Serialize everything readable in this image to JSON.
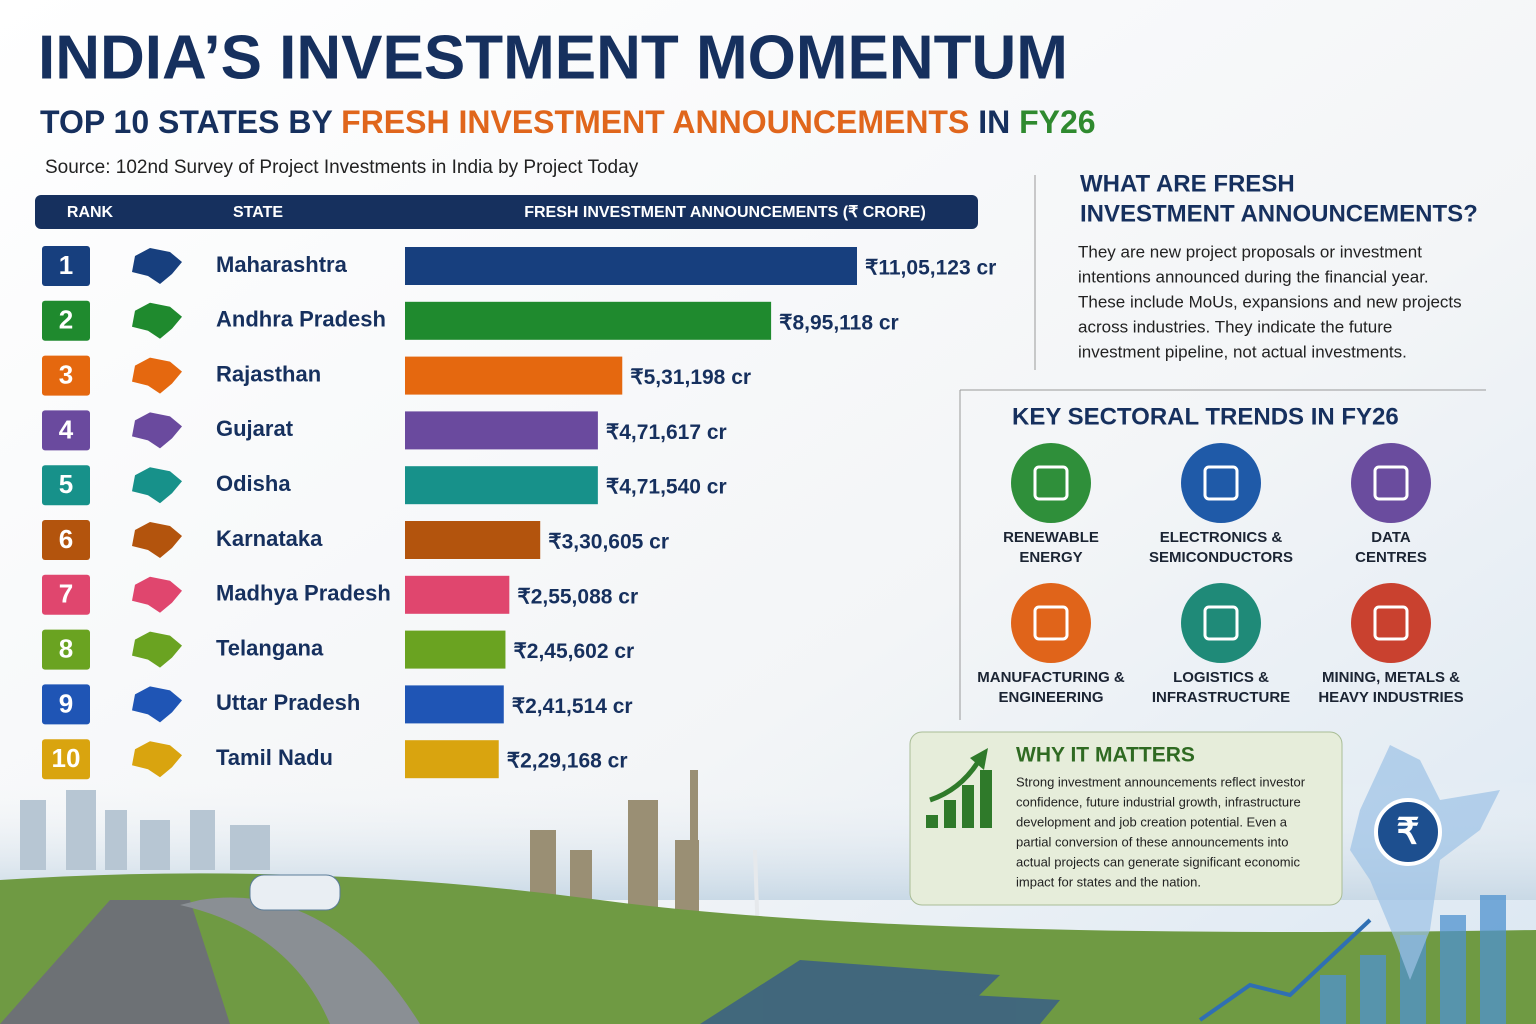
{
  "header": {
    "title": "INDIA’S INVESTMENT MOMENTUM",
    "subtitle_parts": [
      {
        "text": "TOP 10 STATES BY ",
        "color": "#16305e"
      },
      {
        "text": "FRESH INVESTMENT ANNOUNCEMENTS",
        "color": "#e0661c"
      },
      {
        "text": " IN ",
        "color": "#16305e"
      },
      {
        "text": "FY26",
        "color": "#2f8a2f"
      }
    ],
    "source": "Source: 102nd Survey of Project Investments in India by Project Today"
  },
  "chart_data": {
    "type": "bar",
    "orientation": "horizontal",
    "columns": [
      "RANK",
      "STATE",
      "FRESH INVESTMENT ANNOUNCEMENTS (₹ CRORE)"
    ],
    "ranks": [
      1,
      2,
      3,
      4,
      5,
      6,
      7,
      8,
      9,
      10
    ],
    "categories": [
      "Maharashtra",
      "Andhra Pradesh",
      "Rajasthan",
      "Gujarat",
      "Odisha",
      "Karnataka",
      "Madhya Pradesh",
      "Telangana",
      "Uttar Pradesh",
      "Tamil Nadu"
    ],
    "values": [
      1105123,
      895118,
      531198,
      471617,
      471540,
      330605,
      255088,
      245602,
      241514,
      229168
    ],
    "value_labels": [
      "₹11,05,123 cr",
      "₹8,95,118 cr",
      "₹5,31,198 cr",
      "₹4,71,617 cr",
      "₹4,71,540 cr",
      "₹3,30,605 cr",
      "₹2,55,088 cr",
      "₹2,45,602 cr",
      "₹2,41,514 cr",
      "₹2,29,168 cr"
    ],
    "colors": [
      "#173f7e",
      "#1f8a2e",
      "#e5680f",
      "#6a4a9e",
      "#17918a",
      "#b3540d",
      "#e0466e",
      "#6aa321",
      "#1f55b5",
      "#d9a40f"
    ]
  },
  "info": {
    "title": [
      "WHAT ARE FRESH",
      "INVESTMENT ANNOUNCEMENTS?"
    ],
    "lines": [
      "They are new project proposals or investment",
      "intentions announced during the financial year.",
      "These include MoUs, expansions and new projects",
      "across industries. They indicate the future",
      "investment pipeline, not actual investments."
    ]
  },
  "trends": {
    "title": "KEY SECTORAL TRENDS IN FY26",
    "sectors": [
      {
        "lines": [
          "RENEWABLE",
          "ENERGY"
        ],
        "color": "#2f8f3a"
      },
      {
        "lines": [
          "ELECTRONICS &",
          "SEMICONDUCTORS"
        ],
        "color": "#1f5aa8"
      },
      {
        "lines": [
          "DATA",
          "CENTRES"
        ],
        "color": "#6a4c9e"
      },
      {
        "lines": [
          "MANUFACTURING &",
          "ENGINEERING"
        ],
        "color": "#e0641a"
      },
      {
        "lines": [
          "LOGISTICS &",
          "INFRASTRUCTURE"
        ],
        "color": "#1f8a78"
      },
      {
        "lines": [
          "MINING, METALS &",
          "HEAVY INDUSTRIES"
        ],
        "color": "#c9412f"
      }
    ]
  },
  "why": {
    "title": "WHY IT MATTERS",
    "lines": [
      "Strong investment announcements reflect investor",
      "confidence, future industrial growth, infrastructure",
      "development and job creation potential. Even a",
      "partial conversion of these announcements into",
      "actual projects can generate significant economic",
      "impact for states and the nation."
    ]
  }
}
